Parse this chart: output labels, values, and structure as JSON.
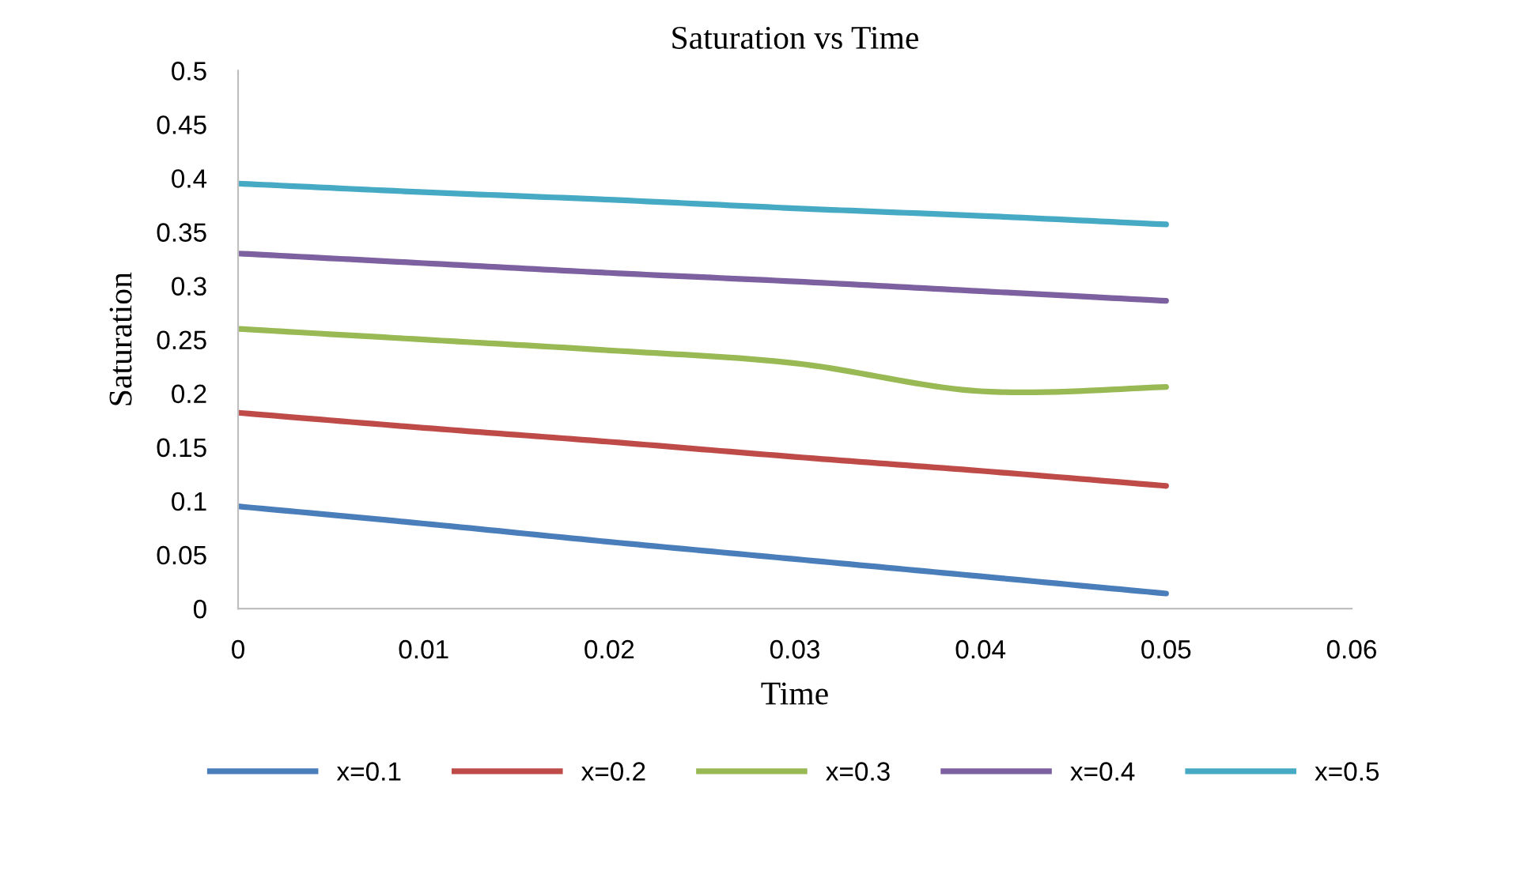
{
  "chart_data": {
    "type": "line",
    "title": "Saturation vs Time",
    "xlabel": "Time",
    "ylabel": "Saturation",
    "x": [
      0,
      0.01,
      0.02,
      0.03,
      0.04,
      0.05
    ],
    "series": [
      {
        "name": "x=0.1",
        "color": "#4a7ebb",
        "values": [
          0.095,
          0.079,
          0.062,
          0.046,
          0.03,
          0.014
        ]
      },
      {
        "name": "x=0.2",
        "color": "#be4b48",
        "values": [
          0.182,
          0.168,
          0.155,
          0.141,
          0.128,
          0.114
        ]
      },
      {
        "name": "x=0.3",
        "color": "#98b954",
        "values": [
          0.26,
          0.25,
          0.24,
          0.228,
          0.202,
          0.206
        ]
      },
      {
        "name": "x=0.4",
        "color": "#7d60a0",
        "values": [
          0.33,
          0.321,
          0.312,
          0.304,
          0.295,
          0.286
        ]
      },
      {
        "name": "x=0.5",
        "color": "#46aac5",
        "values": [
          0.395,
          0.387,
          0.38,
          0.372,
          0.365,
          0.357
        ]
      }
    ],
    "xlim": [
      0,
      0.06
    ],
    "xticks": [
      0,
      0.01,
      0.02,
      0.03,
      0.04,
      0.05,
      0.06
    ],
    "ylim": [
      0,
      0.5
    ],
    "yticks": [
      0,
      0.05,
      0.1,
      0.15,
      0.2,
      0.25,
      0.3,
      0.35,
      0.4,
      0.45,
      0.5
    ],
    "grid": false,
    "legend": "bottom",
    "marker": "none",
    "line_style": "solid"
  }
}
